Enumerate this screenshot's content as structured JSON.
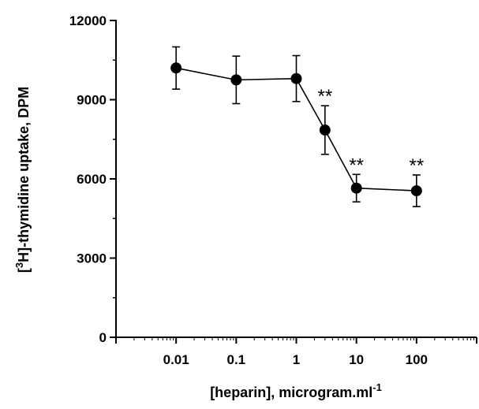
{
  "chart_data": {
    "type": "line",
    "xlabel": "[heparin], microgram.ml",
    "xlabel_superscript": "-1",
    "ylabel_prefix": "[",
    "ylabel_superscript": "3",
    "ylabel_suffix": "H]-thymidine uptake, DPM",
    "x_scale": "log",
    "xlim": [
      0.001,
      1000
    ],
    "ylim": [
      0,
      12000
    ],
    "x_ticks": [
      0.01,
      0.1,
      1,
      10,
      100
    ],
    "x_tick_labels": [
      "0.01",
      "0.1",
      "1",
      "10",
      "100"
    ],
    "y_ticks": [
      0,
      3000,
      6000,
      9000,
      12000
    ],
    "y_tick_labels": [
      "0",
      "3000",
      "6000",
      "9000",
      "12000"
    ],
    "grid": false,
    "series": [
      {
        "color": "#000000",
        "marker": "filled-circle",
        "points": [
          {
            "x": 0.01,
            "y": 10200,
            "err": 800,
            "sig": ""
          },
          {
            "x": 0.1,
            "y": 9750,
            "err": 900,
            "sig": ""
          },
          {
            "x": 1,
            "y": 9800,
            "err": 870,
            "sig": ""
          },
          {
            "x": 3,
            "y": 7850,
            "err": 920,
            "sig": "**"
          },
          {
            "x": 10,
            "y": 5650,
            "err": 520,
            "sig": "**"
          },
          {
            "x": 100,
            "y": 5550,
            "err": 600,
            "sig": "**"
          }
        ]
      }
    ]
  }
}
